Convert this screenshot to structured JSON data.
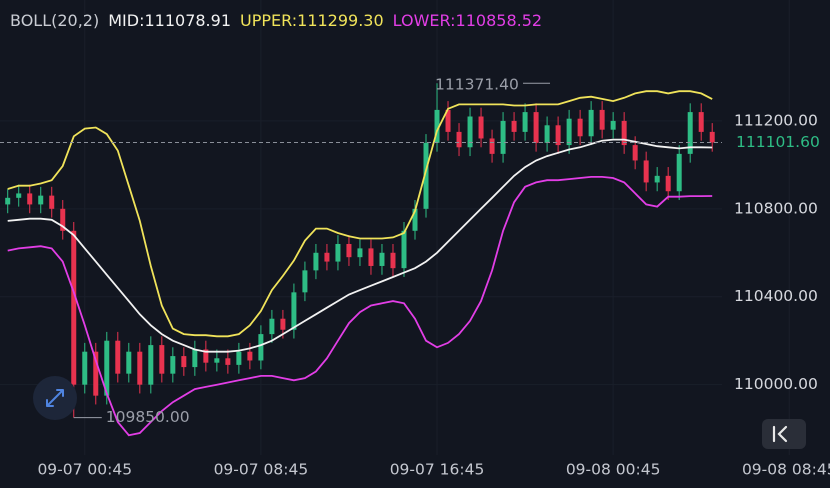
{
  "chart_data": {
    "type": "candlestick",
    "indicator": "BOLL(20,2)",
    "candles": {
      "open": [
        110820,
        110850,
        110870,
        110820,
        110860,
        110800,
        110700,
        110000,
        110150,
        109950,
        110200,
        110050,
        110150,
        110000,
        110180,
        110050,
        110130,
        110080,
        110160,
        110100,
        110120,
        110090,
        110150,
        110110,
        110230,
        110300,
        110250,
        110420,
        110520,
        110600,
        110560,
        110640,
        110580,
        110620,
        110540,
        110600,
        110530,
        110700,
        110800,
        111100,
        111250,
        111150,
        111080,
        111220,
        111120,
        111050,
        111200,
        111150,
        111240,
        111100,
        111180,
        111090,
        111210,
        111130,
        111250,
        111160,
        111200,
        111090,
        111020,
        110920,
        110950,
        110880,
        111050,
        111240,
        111150
      ],
      "high": [
        110890,
        110910,
        110910,
        110900,
        110900,
        110840,
        110740,
        110190,
        110190,
        110240,
        110240,
        110190,
        110190,
        110220,
        110220,
        110170,
        110170,
        110200,
        110200,
        110160,
        110160,
        110190,
        110190,
        110270,
        110340,
        110340,
        110460,
        110560,
        110640,
        110640,
        110680,
        110680,
        110660,
        110660,
        110640,
        110640,
        110740,
        110840,
        111140,
        111371.4,
        111290,
        111190,
        111260,
        111260,
        111160,
        111240,
        111240,
        111280,
        111280,
        111220,
        111220,
        111250,
        111250,
        111290,
        111290,
        111240,
        111240,
        111130,
        111060,
        110990,
        110990,
        111090,
        111280,
        111280,
        111190
      ],
      "low": [
        110780,
        110810,
        110780,
        110780,
        110760,
        110660,
        109850,
        109960,
        109910,
        109910,
        110010,
        110010,
        109960,
        109960,
        110010,
        110010,
        110040,
        110040,
        110060,
        110060,
        110050,
        110050,
        110070,
        110070,
        110190,
        110210,
        110210,
        110380,
        110480,
        110520,
        110520,
        110540,
        110540,
        110500,
        110500,
        110490,
        110490,
        110660,
        110760,
        111060,
        111110,
        111040,
        111040,
        111080,
        111010,
        111010,
        111110,
        111110,
        111060,
        111060,
        111050,
        111050,
        111090,
        111090,
        111120,
        111120,
        111050,
        110980,
        110880,
        110880,
        110840,
        110840,
        111010,
        111110,
        111060
      ],
      "close": [
        110850,
        110870,
        110820,
        110860,
        110800,
        110700,
        110000,
        110150,
        109950,
        110200,
        110050,
        110150,
        110000,
        110180,
        110050,
        110130,
        110080,
        110160,
        110100,
        110120,
        110090,
        110150,
        110110,
        110230,
        110300,
        110250,
        110420,
        110520,
        110600,
        110560,
        110640,
        110580,
        110620,
        110540,
        110600,
        110530,
        110700,
        110800,
        111100,
        111250,
        111150,
        111080,
        111220,
        111120,
        111050,
        111200,
        111150,
        111240,
        111100,
        111180,
        111090,
        111210,
        111130,
        111250,
        111160,
        111200,
        111090,
        111020,
        110920,
        110950,
        110880,
        111050,
        111240,
        111150,
        111101.6
      ],
      "up_color": "#2ebd85",
      "down_color": "#e8334f"
    },
    "series": [
      {
        "name": "MID:111078.91",
        "color": "#f2f2f2",
        "values": [
          110745,
          110750,
          110755,
          110755,
          110750,
          110720,
          110680,
          110620,
          110560,
          110500,
          110440,
          110380,
          110320,
          110270,
          110230,
          110200,
          110180,
          110160,
          110150,
          110150,
          110150,
          110155,
          110165,
          110180,
          110200,
          110230,
          110260,
          110290,
          110320,
          110350,
          110380,
          110410,
          110430,
          110450,
          110470,
          110490,
          110510,
          110530,
          110560,
          110600,
          110650,
          110700,
          110750,
          110800,
          110850,
          110900,
          110950,
          110990,
          111020,
          111040,
          111055,
          111070,
          111080,
          111095,
          111110,
          111115,
          111115,
          111105,
          111095,
          111085,
          111080,
          111075,
          111080,
          111080,
          111078.91
        ]
      },
      {
        "name": "UPPER:111299.30",
        "color": "#f0e35a",
        "values": [
          110890,
          110905,
          110905,
          110915,
          110930,
          110995,
          111130,
          111165,
          111170,
          111140,
          111065,
          110905,
          110745,
          110540,
          110360,
          110255,
          110230,
          110225,
          110225,
          110220,
          110220,
          110230,
          110270,
          110335,
          110430,
          110495,
          110565,
          110655,
          110710,
          110710,
          110690,
          110675,
          110665,
          110665,
          110665,
          110670,
          110690,
          110790,
          110975,
          111155,
          111255,
          111275,
          111275,
          111275,
          111275,
          111275,
          111270,
          111270,
          111275,
          111275,
          111275,
          111290,
          111305,
          111310,
          111300,
          111290,
          111305,
          111325,
          111335,
          111335,
          111325,
          111335,
          111335,
          111325,
          111299.3
        ]
      },
      {
        "name": "LOWER:110858.52",
        "color": "#e23ee6",
        "values": [
          110610,
          110620,
          110625,
          110630,
          110620,
          110560,
          110420,
          110270,
          110110,
          109960,
          109830,
          109770,
          109780,
          109830,
          109880,
          109920,
          109950,
          109980,
          109990,
          110000,
          110010,
          110020,
          110030,
          110040,
          110040,
          110030,
          110020,
          110030,
          110060,
          110120,
          110200,
          110280,
          110330,
          110360,
          110370,
          110380,
          110370,
          110300,
          110200,
          110170,
          110190,
          110230,
          110290,
          110380,
          110520,
          110700,
          110830,
          110900,
          110920,
          110930,
          110930,
          110935,
          110940,
          110945,
          110945,
          110940,
          110920,
          110870,
          110820,
          110810,
          110855,
          110855,
          110858,
          110858,
          110858.52
        ]
      }
    ],
    "xlim": [
      -0.7,
      74.7
    ],
    "xticks": [
      {
        "value": 7,
        "label": "09-07 00:45"
      },
      {
        "value": 23,
        "label": "09-07 08:45"
      },
      {
        "value": 39,
        "label": "09-07 16:45"
      },
      {
        "value": 55,
        "label": "09-08 00:45"
      },
      {
        "value": 71,
        "label": "09-08 08:45"
      }
    ],
    "ylim": [
      109680,
      111750
    ],
    "yticks": [
      {
        "value": 110000,
        "label": "110000.00"
      },
      {
        "value": 110400,
        "label": "110400.00"
      },
      {
        "value": 110800,
        "label": "110800.00"
      },
      {
        "value": 111200,
        "label": "111200.00"
      }
    ],
    "last_price": {
      "value": 111101.6,
      "label": "111101.60",
      "color": "#2ebd85"
    },
    "high_marker": {
      "value": 111371.4,
      "label": "111371.40"
    },
    "low_marker": {
      "value": 109850,
      "label": "109850.00"
    }
  }
}
